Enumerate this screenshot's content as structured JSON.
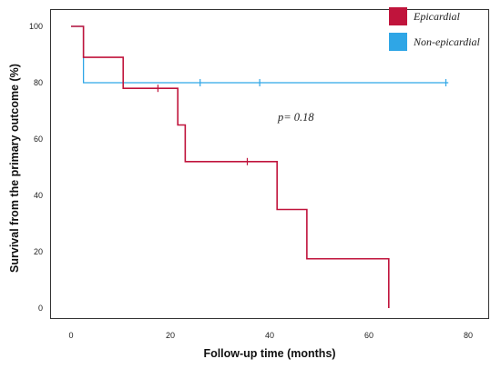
{
  "chart_data": {
    "type": "line",
    "subtype": "kaplan-meier step",
    "title": "",
    "xlabel": "Follow-up time (months)",
    "ylabel": "Survival from the primary outcome (%)",
    "xlim": [
      0,
      80
    ],
    "ylim": [
      0,
      100
    ],
    "xticks": [
      0,
      20,
      40,
      60,
      80
    ],
    "yticks": [
      0,
      20,
      40,
      60,
      80,
      100
    ],
    "grid": false,
    "legend_position": "top-right",
    "annotation": "p= 0.18",
    "series": [
      {
        "name": "Epicardial",
        "color": "#c0143c",
        "steps": [
          {
            "x": 0,
            "y": 100
          },
          {
            "x": 2.5,
            "y": 89
          },
          {
            "x": 10.5,
            "y": 78
          },
          {
            "x": 21.5,
            "y": 65
          },
          {
            "x": 23,
            "y": 52
          },
          {
            "x": 41.5,
            "y": 35
          },
          {
            "x": 47.5,
            "y": 17.5
          },
          {
            "x": 64,
            "y": 0
          }
        ],
        "end_x": 64,
        "censored": [
          {
            "x": 17.5,
            "y": 78
          },
          {
            "x": 35.5,
            "y": 52
          }
        ]
      },
      {
        "name": "Non-epicardial",
        "color": "#2fa6e6",
        "steps": [
          {
            "x": 0,
            "y": 100
          },
          {
            "x": 2.5,
            "y": 80
          }
        ],
        "end_x": 76,
        "censored": [
          {
            "x": 26,
            "y": 80
          },
          {
            "x": 38,
            "y": 80
          },
          {
            "x": 75.5,
            "y": 80
          }
        ]
      }
    ]
  }
}
